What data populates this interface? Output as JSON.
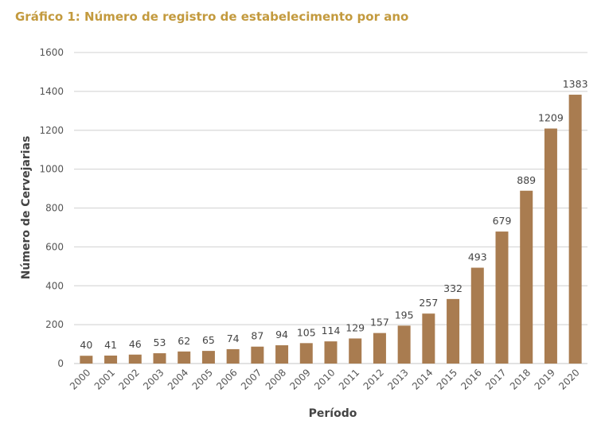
{
  "chart_data": {
    "type": "bar",
    "title": "Gráfico 1: Número de registro de estabelecimento por ano",
    "xlabel": "Período",
    "ylabel": "Número de Cervejarias",
    "ylim": [
      0,
      1600
    ],
    "yticks": [
      0,
      200,
      400,
      600,
      800,
      1000,
      1200,
      1400,
      1600
    ],
    "grid": true,
    "categories": [
      "2000",
      "2001",
      "2002",
      "2003",
      "2004",
      "2005",
      "2006",
      "2007",
      "2008",
      "2009",
      "2010",
      "2011",
      "2012",
      "2013",
      "2014",
      "2015",
      "2016",
      "2017",
      "2018",
      "2019",
      "2020"
    ],
    "values": [
      40,
      41,
      46,
      53,
      62,
      65,
      74,
      87,
      94,
      105,
      114,
      129,
      157,
      195,
      257,
      332,
      493,
      679,
      889,
      1209,
      1383
    ],
    "colors": {
      "bar": "#a97c50",
      "title": "#c39a3e",
      "grid": "#d9d9d9",
      "highlight_label": "#b59a6a"
    },
    "highlighted_label_index": 2
  }
}
